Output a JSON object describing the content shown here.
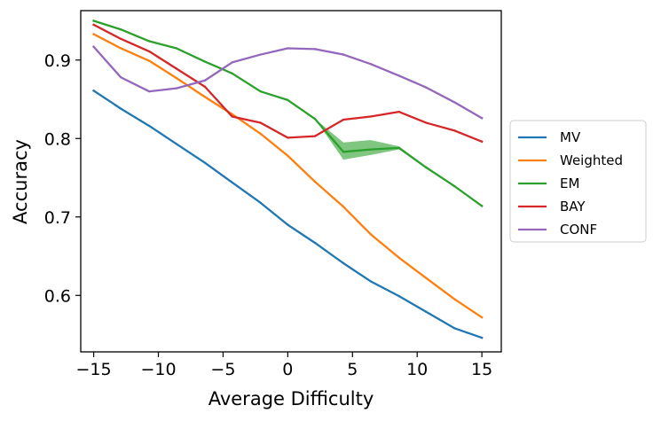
{
  "chart_data": {
    "type": "line",
    "title": "",
    "xlabel": "Average Difficulty",
    "ylabel": "Accuracy",
    "xlim": [
      -16.0,
      16.5
    ],
    "ylim": [
      0.528,
      0.963
    ],
    "xticks": [
      -15,
      -10,
      -5,
      0,
      5,
      10,
      15
    ],
    "xtick_labels": [
      "−15",
      "−10",
      "−5",
      "0",
      "5",
      "10",
      "15"
    ],
    "yticks": [
      0.6,
      0.7,
      0.8,
      0.9
    ],
    "ytick_labels": [
      "0.6",
      "0.7",
      "0.8",
      "0.9"
    ],
    "grid": false,
    "legend_position": "outside right",
    "x": [
      -15,
      -12.9,
      -10.7,
      -8.6,
      -6.4,
      -4.3,
      -2.1,
      0,
      2.1,
      4.3,
      6.4,
      8.6,
      10.7,
      12.9,
      15
    ],
    "series": [
      {
        "name": "MV",
        "color": "#1f77b4",
        "values": [
          0.861,
          0.838,
          0.816,
          0.793,
          0.769,
          0.744,
          0.718,
          0.69,
          0.667,
          0.641,
          0.618,
          0.599,
          0.579,
          0.558,
          0.546
        ]
      },
      {
        "name": "Weighted",
        "color": "#ff7f0e",
        "values": [
          0.933,
          0.915,
          0.899,
          0.877,
          0.853,
          0.831,
          0.806,
          0.778,
          0.745,
          0.713,
          0.678,
          0.648,
          0.622,
          0.595,
          0.572
        ]
      },
      {
        "name": "EM",
        "color": "#2ca02c",
        "values": [
          0.95,
          0.939,
          0.924,
          0.915,
          0.898,
          0.883,
          0.86,
          0.849,
          0.825,
          0.783,
          0.786,
          0.788,
          0.763,
          0.739,
          0.714
        ],
        "band_lower": [
          0.95,
          0.939,
          0.924,
          0.915,
          0.898,
          0.883,
          0.86,
          0.849,
          0.825,
          0.773,
          0.779,
          0.786,
          0.762,
          0.738,
          0.713
        ],
        "band_upper": [
          0.95,
          0.939,
          0.924,
          0.915,
          0.898,
          0.883,
          0.86,
          0.849,
          0.825,
          0.795,
          0.798,
          0.79,
          0.764,
          0.74,
          0.715
        ]
      },
      {
        "name": "BAY",
        "color": "#d62728",
        "values": [
          0.945,
          0.927,
          0.911,
          0.889,
          0.866,
          0.828,
          0.82,
          0.801,
          0.803,
          0.824,
          0.828,
          0.834,
          0.82,
          0.81,
          0.796
        ]
      },
      {
        "name": "CONF",
        "color": "#9467bd",
        "values": [
          0.917,
          0.878,
          0.86,
          0.864,
          0.874,
          0.897,
          0.907,
          0.915,
          0.914,
          0.907,
          0.895,
          0.88,
          0.865,
          0.846,
          0.826
        ]
      }
    ]
  }
}
